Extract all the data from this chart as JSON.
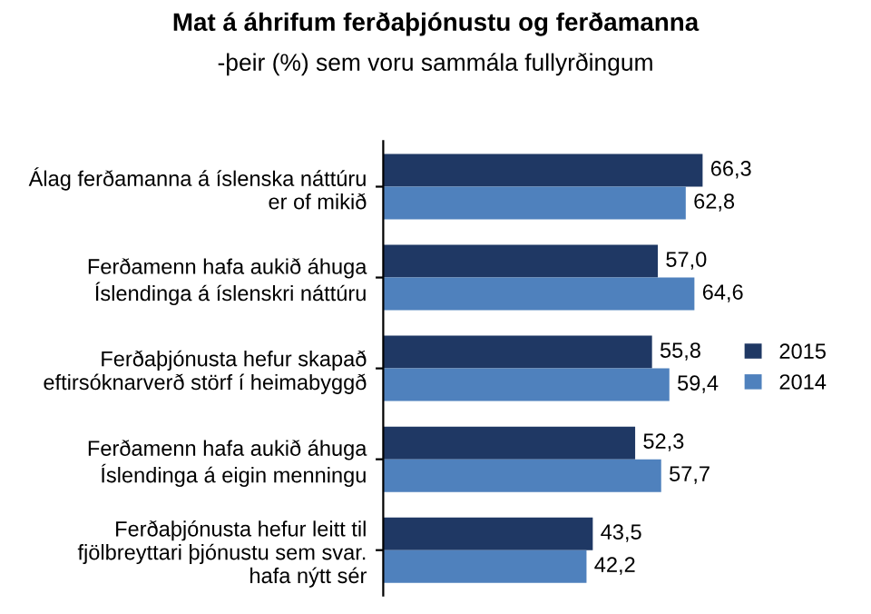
{
  "chart_data": {
    "type": "bar",
    "orientation": "horizontal",
    "title": "Mat á áhrifum ferðaþjónustu og ferðamanna",
    "subtitle": "-þeir (%) sem voru sammála fullyrðingum",
    "categories": [
      "Álag ferðamanna á íslenska náttúru\ner of mikið",
      "Ferðamenn hafa aukið áhuga\nÍslendinga á íslenskri náttúru",
      "Ferðaþjónusta hefur skapað\neftirsóknarverð störf í heimabyggð",
      "Ferðamenn hafa aukið áhuga\nÍslendinga á eigin menningu",
      "Ferðaþjónusta hefur leitt til\nfjölbreyttari þjónustu sem svar.\nhafa nýtt sér"
    ],
    "series": [
      {
        "name": "2015",
        "color": "#1f3864",
        "values": [
          66.3,
          57.0,
          55.8,
          52.3,
          43.5
        ],
        "value_labels": [
          "66,3",
          "57,0",
          "55,8",
          "52,3",
          "43,5"
        ]
      },
      {
        "name": "2014",
        "color": "#4f81bd",
        "values": [
          62.8,
          64.6,
          59.4,
          57.7,
          42.2
        ],
        "value_labels": [
          "62,8",
          "64,6",
          "59,4",
          "57,7",
          "42,2"
        ]
      }
    ],
    "legend": "right",
    "grid": false
  }
}
